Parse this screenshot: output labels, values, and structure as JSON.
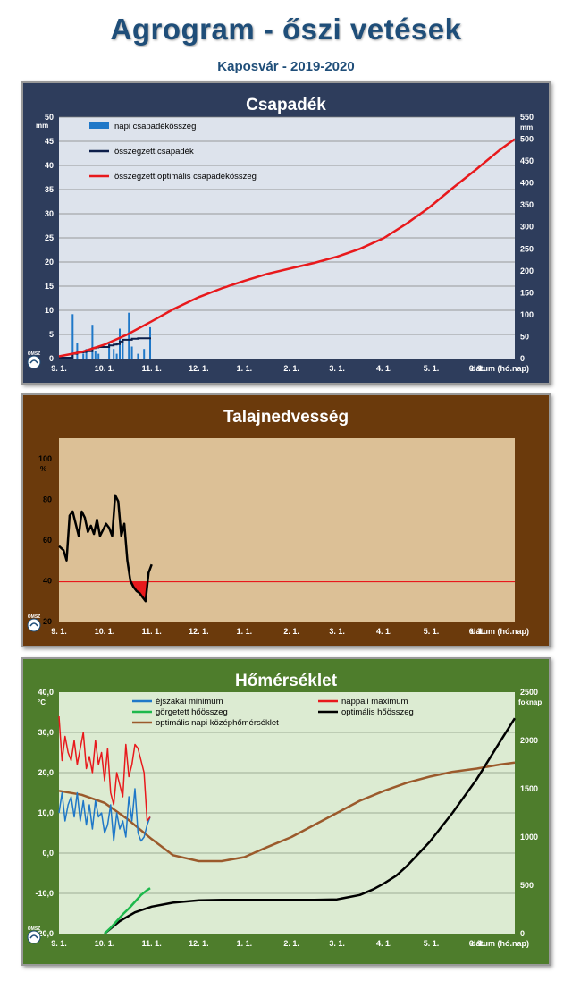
{
  "page": {
    "title": "Agrogram - őszi vetések",
    "subtitle": "Kaposvár  - 2019-2020"
  },
  "colors": {
    "precip_bg": "#2e3d5c",
    "precip_plot": "#dde3ec",
    "soil_bg": "#6b3a0c",
    "soil_plot": "#dcc096",
    "temp_bg": "#4e7d2c",
    "temp_plot": "#dcebd2"
  },
  "logo_text": "OMSZ",
  "x_ticks": [
    "9. 1.",
    "10. 1.",
    "11. 1.",
    "12. 1.",
    "1. 1.",
    "2. 1.",
    "3. 1.",
    "4. 1.",
    "5. 1.",
    "6. 1.",
    "7. 1."
  ],
  "x_axis_label": "dátum (hó.nap)",
  "chart_data": [
    {
      "id": "csapadek",
      "type": "bar",
      "title": "Csapadék",
      "ylabel": "mm",
      "y2label": "mm",
      "ylim": [
        0,
        50
      ],
      "y2lim": [
        0,
        550
      ],
      "yticks": [
        0,
        5,
        10,
        15,
        20,
        25,
        30,
        35,
        40,
        45,
        50
      ],
      "y2ticks": [
        0,
        50,
        100,
        150,
        200,
        250,
        300,
        350,
        400,
        450,
        500,
        550
      ],
      "xlim": [
        0,
        300
      ],
      "grid": true,
      "legend_position": "top-left",
      "series": [
        {
          "name": "napi csapadékösszeg",
          "type": "bar",
          "axis": "left",
          "color": "#1f78c8",
          "x": [
            9,
            12,
            16,
            18,
            22,
            24,
            26,
            33,
            36,
            38,
            40,
            42,
            46,
            48,
            52,
            56,
            60
          ],
          "values": [
            9.2,
            3.2,
            1.0,
            2.0,
            7.0,
            1.5,
            1.0,
            3.5,
            2.0,
            1.0,
            6.2,
            4.0,
            9.5,
            2.5,
            1.0,
            2.0,
            6.5
          ]
        },
        {
          "name": "összegzett csapadék",
          "type": "step",
          "axis": "right",
          "color": "#0d1f4a",
          "x": [
            0,
            9,
            12,
            16,
            18,
            22,
            24,
            26,
            33,
            36,
            38,
            40,
            42,
            46,
            48,
            52,
            56,
            60
          ],
          "values": [
            2,
            11,
            14,
            15,
            17,
            24,
            25.5,
            26.5,
            30,
            32,
            33,
            39,
            43,
            43,
            45.5,
            46.5,
            46.5,
            48
          ]
        },
        {
          "name": "összegzett optimális csapadékösszeg",
          "type": "line",
          "axis": "right",
          "color": "#e8191c",
          "x": [
            0,
            15,
            30,
            45,
            61,
            75,
            92,
            107,
            122,
            137,
            153,
            168,
            183,
            198,
            214,
            229,
            244,
            259,
            275,
            290,
            300
          ],
          "values": [
            5,
            15,
            32,
            55,
            85,
            112,
            140,
            160,
            177,
            193,
            206,
            218,
            232,
            250,
            275,
            308,
            345,
            388,
            432,
            475,
            500
          ]
        }
      ]
    },
    {
      "id": "talajnedvesseg",
      "type": "line",
      "title": "Talajnedvesség",
      "ylabel": "%",
      "ylim": [
        20,
        110
      ],
      "yticks": [
        20,
        40,
        60,
        80,
        100
      ],
      "xlim": [
        0,
        300
      ],
      "threshold": 39.5,
      "threshold_color": "#e8191c",
      "grid": false,
      "series": [
        {
          "name": "talajnedvesség",
          "color": "#000000",
          "x": [
            0,
            3,
            5,
            7,
            9,
            11,
            13,
            15,
            17,
            19,
            21,
            23,
            25,
            27,
            29,
            31,
            33,
            35,
            37,
            39,
            41,
            43,
            45,
            47,
            49,
            51,
            53,
            55,
            57,
            59,
            61
          ],
          "values": [
            57,
            55,
            50,
            72,
            74,
            68,
            62,
            74,
            71,
            64,
            67,
            63,
            70,
            62,
            65,
            68,
            66,
            62,
            82,
            79,
            62,
            68,
            50,
            40,
            37,
            35,
            34,
            32,
            30,
            44,
            48
          ]
        }
      ]
    },
    {
      "id": "homerseklet",
      "type": "line",
      "title": "Hőmérséklet",
      "ylabel": "°C",
      "y2label": "foknap",
      "ylim": [
        -20,
        40
      ],
      "y2lim": [
        0,
        2500
      ],
      "yticks": [
        -20,
        -10,
        0,
        10,
        20,
        30,
        40
      ],
      "yticklabels": [
        "-20,0",
        "-10,0",
        "0,0",
        "10,0",
        "20,0",
        "30,0",
        "40,0"
      ],
      "y2ticks": [
        0,
        500,
        1000,
        1500,
        2000,
        2500
      ],
      "xlim": [
        0,
        300
      ],
      "grid": true,
      "legend_position": "top",
      "series": [
        {
          "name": "éjszakai minimum",
          "axis": "left",
          "color": "#1f78c8",
          "x": [
            0,
            2,
            4,
            6,
            8,
            10,
            12,
            14,
            16,
            18,
            20,
            22,
            24,
            26,
            28,
            30,
            32,
            34,
            36,
            38,
            40,
            42,
            44,
            46,
            48,
            50,
            52,
            54,
            56,
            58,
            60
          ],
          "values": [
            10,
            15,
            8,
            12,
            14,
            9,
            15,
            8,
            13,
            7,
            12,
            6,
            13,
            9,
            10,
            5,
            7,
            12,
            3,
            10,
            6,
            8,
            4,
            14,
            8,
            16,
            5,
            3,
            4,
            7,
            9
          ]
        },
        {
          "name": "nappali maximum",
          "axis": "left",
          "color": "#e8191c",
          "x": [
            0,
            2,
            4,
            6,
            8,
            10,
            12,
            14,
            16,
            18,
            20,
            22,
            24,
            26,
            28,
            30,
            32,
            34,
            36,
            38,
            40,
            42,
            44,
            46,
            48,
            50,
            52,
            54,
            56,
            58,
            60
          ],
          "values": [
            34,
            23,
            29,
            25,
            23,
            28,
            22,
            26,
            30,
            21,
            24,
            20,
            28,
            22,
            25,
            18,
            26,
            15,
            12,
            20,
            17,
            14,
            27,
            19,
            22,
            27,
            26,
            23,
            20,
            8,
            9
          ]
        },
        {
          "name": "görgetett hőösszeg",
          "axis": "right",
          "color": "#1db84c",
          "x": [
            30,
            34,
            38,
            42,
            46,
            50,
            54,
            58,
            60
          ],
          "values": [
            0,
            60,
            130,
            200,
            260,
            330,
            400,
            450,
            470
          ]
        },
        {
          "name": "optimális hőösszeg",
          "axis": "right",
          "color": "#000000",
          "x": [
            30,
            40,
            50,
            61,
            75,
            92,
            107,
            122,
            137,
            153,
            168,
            183,
            198,
            207,
            214,
            222,
            229,
            244,
            259,
            275,
            290,
            300
          ],
          "values": [
            0,
            130,
            220,
            280,
            320,
            345,
            350,
            350,
            350,
            350,
            350,
            355,
            400,
            460,
            520,
            600,
            700,
            950,
            1250,
            1600,
            1980,
            2230
          ]
        },
        {
          "name": "optimális napi középhőmérséklet",
          "axis": "left",
          "color": "#9b5a2c",
          "x": [
            0,
            15,
            30,
            45,
            61,
            75,
            92,
            107,
            122,
            137,
            153,
            168,
            183,
            198,
            214,
            229,
            244,
            259,
            275,
            290,
            300
          ],
          "values": [
            15.5,
            14.5,
            12.5,
            8.5,
            3.5,
            -0.5,
            -2,
            -2,
            -1,
            1.5,
            4,
            7,
            10,
            13,
            15.5,
            17.5,
            19,
            20.2,
            21,
            22,
            22.5
          ]
        }
      ]
    }
  ]
}
